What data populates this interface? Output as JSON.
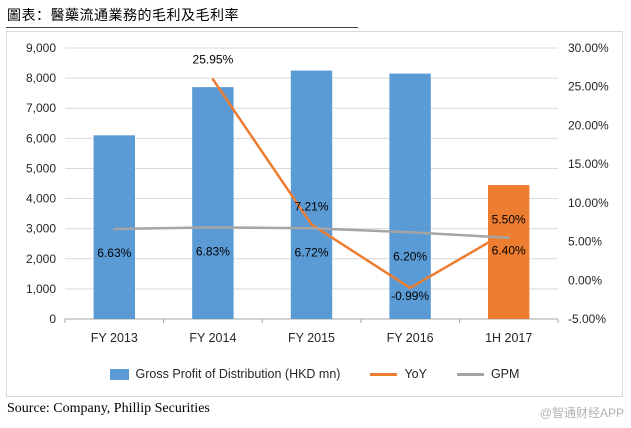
{
  "title": "圖表：醫藥流通業務的毛利及毛利率",
  "source": "Source: Company, Phillip Securities",
  "watermark": "@智通财经APP",
  "chart_data": {
    "type": "bar",
    "subtype": "bar+line combo, dual axis",
    "categories": [
      "FY 2013",
      "FY 2014",
      "FY 2015",
      "FY 2016",
      "1H 2017"
    ],
    "series": [
      {
        "name": "Gross Profit of Distribution (HKD mn)",
        "type": "bar",
        "axis": "left",
        "color": "#5B9BD5",
        "colors": [
          "#5B9BD5",
          "#5B9BD5",
          "#5B9BD5",
          "#5B9BD5",
          "#ED7D31"
        ],
        "values": [
          6100,
          7700,
          8250,
          8150,
          4450
        ]
      },
      {
        "name": "YoY",
        "type": "line",
        "axis": "right",
        "color": "#ED7D31",
        "values": [
          null,
          25.95,
          7.21,
          -0.99,
          6.4
        ],
        "labels": [
          "",
          "25.95%",
          "7.21%",
          "-0.99%",
          "6.40%"
        ],
        "label_offsets": [
          0,
          -16,
          -14,
          12,
          24
        ]
      },
      {
        "name": "GPM",
        "type": "line",
        "axis": "right",
        "color": "#A5A5A5",
        "values": [
          6.63,
          6.83,
          6.72,
          6.2,
          5.5
        ],
        "labels": [
          "6.63%",
          "6.83%",
          "6.72%",
          "6.20%",
          "5.50%"
        ],
        "label_offsets": [
          28,
          28,
          28,
          28,
          -14
        ]
      }
    ],
    "left_axis": {
      "min": 0,
      "max": 9000,
      "step": 1000
    },
    "right_axis": {
      "min": -5,
      "max": 30,
      "step": 5
    },
    "grid": true,
    "legend_position": "bottom",
    "colors": {
      "grid": "#D9D9D9",
      "axis": "#A6A6A6",
      "text": "#262626",
      "label": "#000000"
    }
  }
}
